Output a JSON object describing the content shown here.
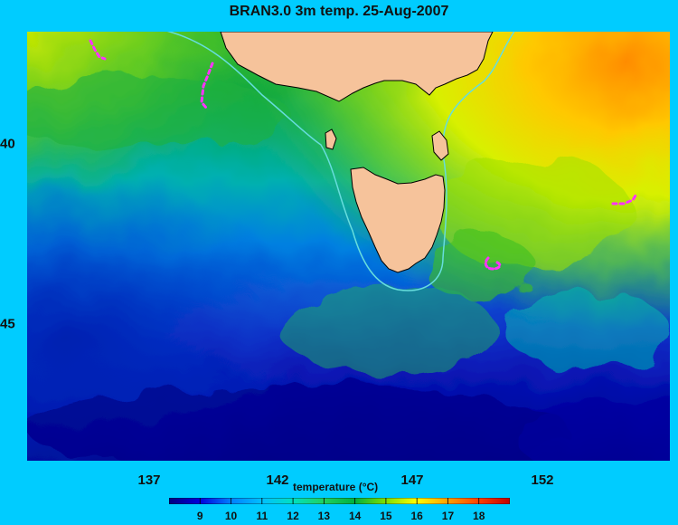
{
  "title": "BRAN3.0 3m temp. 25-Aug-2007",
  "map": {
    "x_ticks": [
      "137",
      "142",
      "147",
      "152"
    ],
    "y_ticks": [
      "40",
      "45"
    ],
    "colors": {
      "background": "#00ccff",
      "land": "#f6c39b",
      "coastline": "#000000",
      "isobath": "#66dddd",
      "drifter": "#ff33ff"
    }
  },
  "colorbar": {
    "label": "temperature (°C)",
    "ticks": [
      "9",
      "10",
      "11",
      "12",
      "13",
      "14",
      "15",
      "16",
      "17",
      "18"
    ],
    "range": [
      8,
      19
    ],
    "colors": [
      "#000080",
      "#0000dd",
      "#0080ff",
      "#00c0ff",
      "#00e0c0",
      "#20d060",
      "#00b040",
      "#80e000",
      "#ffff00",
      "#ffa000",
      "#ff4000",
      "#c00000"
    ]
  }
}
